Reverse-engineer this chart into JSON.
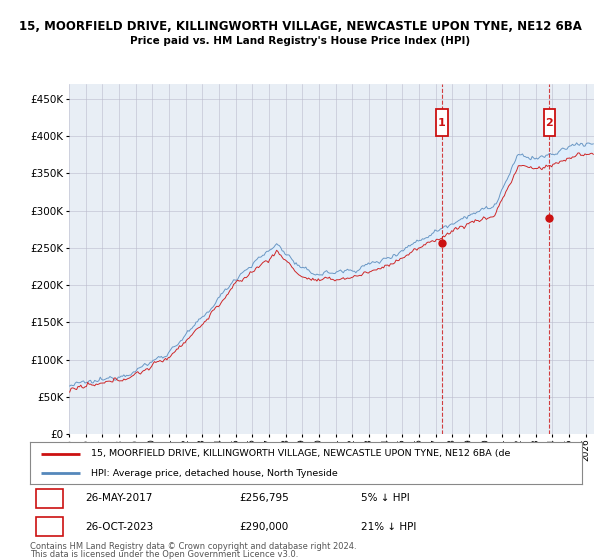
{
  "title1": "15, MOORFIELD DRIVE, KILLINGWORTH VILLAGE, NEWCASTLE UPON TYNE, NE12 6BA",
  "title2": "Price paid vs. HM Land Registry's House Price Index (HPI)",
  "ytick_values": [
    0,
    50000,
    100000,
    150000,
    200000,
    250000,
    300000,
    350000,
    400000,
    450000
  ],
  "hpi_color": "#5588bb",
  "price_color": "#cc1111",
  "fill_color": "#ddeeff",
  "marker1_year": 2017.37,
  "marker1_price": 256795,
  "marker1_date": "26-MAY-2017",
  "marker1_pct": "5% ↓ HPI",
  "marker2_year": 2023.83,
  "marker2_price": 290000,
  "marker2_date": "26-OCT-2023",
  "marker2_pct": "21% ↓ HPI",
  "legend_line1": "15, MOORFIELD DRIVE, KILLINGWORTH VILLAGE, NEWCASTLE UPON TYNE, NE12 6BA (de",
  "legend_line2": "HPI: Average price, detached house, North Tyneside",
  "footnote1": "Contains HM Land Registry data © Crown copyright and database right 2024.",
  "footnote2": "This data is licensed under the Open Government Licence v3.0.",
  "bg_color": "#e8eef5",
  "grid_color": "#bbbbcc"
}
